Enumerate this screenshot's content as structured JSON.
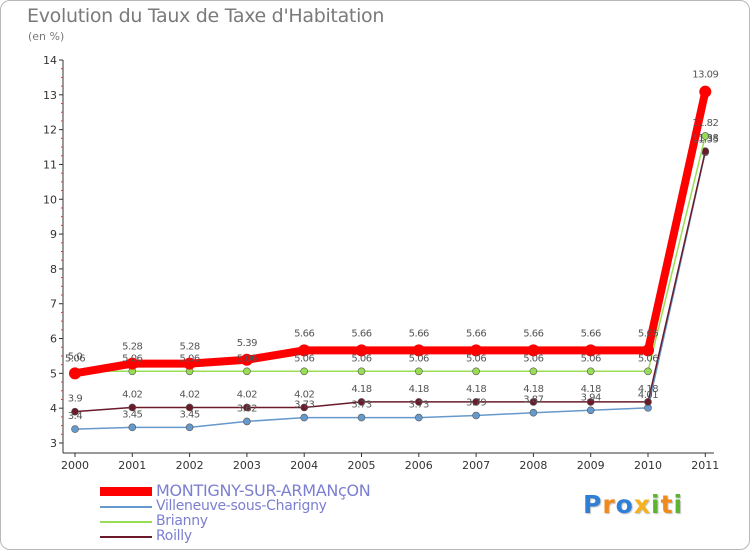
{
  "title": "Evolution du Taux de Taxe d'Habitation",
  "subtitle": "(en %)",
  "logo": "Proxiti",
  "chart_data": {
    "type": "line",
    "title": "Evolution du Taux de Taxe d'Habitation",
    "ylabel": "(en %)",
    "xlabel": "",
    "categories": [
      "2000",
      "2001",
      "2002",
      "2003",
      "2004",
      "2005",
      "2006",
      "2007",
      "2008",
      "2009",
      "2010",
      "2011"
    ],
    "ylim": [
      3,
      14
    ],
    "yticks": [
      3,
      4,
      5,
      6,
      7,
      8,
      9,
      10,
      11,
      12,
      13,
      14
    ],
    "series": [
      {
        "name": "MONTIGNY-SUR-ARMANçON",
        "color": "#ff0000",
        "values": [
          5.0,
          5.28,
          5.28,
          5.39,
          5.66,
          5.66,
          5.66,
          5.66,
          5.66,
          5.66,
          5.66,
          13.09
        ],
        "labels": [
          "5.0",
          "5.28",
          "5.28",
          "5.39",
          "5.66",
          "5.66",
          "5.66",
          "5.66",
          "5.66",
          "5.66",
          "5.66",
          "13.09"
        ]
      },
      {
        "name": "Villeneuve-sous-Charigny",
        "color": "#6699cc",
        "values": [
          3.4,
          3.45,
          3.45,
          3.62,
          3.73,
          3.73,
          3.73,
          3.79,
          3.87,
          3.94,
          4.01,
          11.35
        ],
        "labels": [
          "3.4",
          "3.45",
          "3.45",
          "3.62",
          "3.73",
          "3.73",
          "3.73",
          "3.79",
          "3.87",
          "3.94",
          "4.01",
          "11.35"
        ]
      },
      {
        "name": "Brianny",
        "color": "#99dd55",
        "values": [
          5.06,
          5.06,
          5.06,
          5.06,
          5.06,
          5.06,
          5.06,
          5.06,
          5.06,
          5.06,
          5.06,
          11.82
        ],
        "labels": [
          "5.06",
          "5.06",
          "5.06",
          "5.06",
          "5.06",
          "5.06",
          "5.06",
          "5.06",
          "5.06",
          "5.06",
          "5.06",
          "11.82"
        ]
      },
      {
        "name": "Roilly",
        "color": "#6b1a2a",
        "values": [
          3.9,
          4.02,
          4.02,
          4.02,
          4.02,
          4.18,
          4.18,
          4.18,
          4.18,
          4.18,
          4.18,
          11.38
        ],
        "labels": [
          "3.9",
          "4.02",
          "4.02",
          "4.02",
          "4.02",
          "4.18",
          "4.18",
          "4.18",
          "4.18",
          "4.18",
          "4.18",
          "11.38"
        ]
      }
    ],
    "grid": false,
    "legend_position": "bottom-left"
  }
}
